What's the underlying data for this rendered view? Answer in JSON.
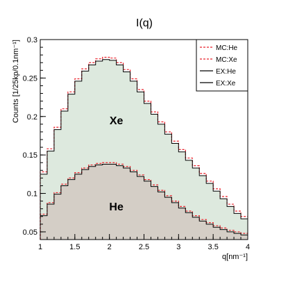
{
  "chart_data": {
    "type": "line",
    "title": "I(q)",
    "xlabel": "q[nm⁻¹]",
    "ylabel": "Counts [1/25kp/0.1nm⁻¹]",
    "xlim": [
      1,
      4
    ],
    "ylim": [
      0.04,
      0.3
    ],
    "x_tick_labels": [
      "1",
      "1.5",
      "2",
      "2.5",
      "3",
      "3.5",
      "4"
    ],
    "y_tick_labels": [
      "0.05",
      "0.1",
      "0.15",
      "0.2",
      "0.25",
      "0.3"
    ],
    "x_ticks": [
      1,
      1.5,
      2,
      2.5,
      3,
      3.5,
      4
    ],
    "y_ticks": [
      0.05,
      0.1,
      0.15,
      0.2,
      0.25,
      0.3
    ],
    "histogram_style": "step",
    "bin_edges": [
      1,
      1.1,
      1.2,
      1.3,
      1.4,
      1.5,
      1.6,
      1.7,
      1.8,
      1.9,
      2.0,
      2.1,
      2.2,
      2.3,
      2.4,
      2.5,
      2.6,
      2.7,
      2.8,
      2.9,
      3.0,
      3.1,
      3.2,
      3.3,
      3.4,
      3.5,
      3.6,
      3.7,
      3.8,
      3.9,
      4.0
    ],
    "series": [
      {
        "name": "MC:He",
        "color": "#e8212a",
        "dash": "dashed",
        "values": [
          0.073,
          0.088,
          0.101,
          0.112,
          0.12,
          0.127,
          0.133,
          0.137,
          0.139,
          0.14,
          0.14,
          0.138,
          0.135,
          0.13,
          0.124,
          0.118,
          0.111,
          0.104,
          0.097,
          0.09,
          0.083,
          0.077,
          0.071,
          0.066,
          0.062,
          0.058,
          0.055,
          0.052,
          0.05,
          0.048
        ]
      },
      {
        "name": "MC:Xe",
        "color": "#e8212a",
        "dash": "dashed",
        "values": [
          0.128,
          0.158,
          0.186,
          0.21,
          0.232,
          0.249,
          0.262,
          0.27,
          0.275,
          0.277,
          0.276,
          0.27,
          0.261,
          0.249,
          0.235,
          0.22,
          0.206,
          0.193,
          0.18,
          0.168,
          0.157,
          0.146,
          0.136,
          0.126,
          0.116,
          0.106,
          0.096,
          0.086,
          0.077,
          0.07
        ]
      },
      {
        "name": "EX:He",
        "color": "#000000",
        "dash": "solid",
        "fill": "#d4cec6",
        "values": [
          0.071,
          0.086,
          0.099,
          0.11,
          0.118,
          0.125,
          0.131,
          0.135,
          0.137,
          0.138,
          0.138,
          0.136,
          0.133,
          0.128,
          0.122,
          0.116,
          0.109,
          0.102,
          0.095,
          0.088,
          0.081,
          0.075,
          0.069,
          0.064,
          0.06,
          0.056,
          0.053,
          0.05,
          0.048,
          0.046
        ]
      },
      {
        "name": "EX:Xe",
        "color": "#000000",
        "dash": "solid",
        "fill": "#dde9de",
        "values": [
          0.125,
          0.155,
          0.183,
          0.207,
          0.229,
          0.246,
          0.259,
          0.267,
          0.272,
          0.274,
          0.273,
          0.267,
          0.258,
          0.246,
          0.232,
          0.217,
          0.203,
          0.19,
          0.177,
          0.165,
          0.154,
          0.143,
          0.133,
          0.123,
          0.113,
          0.103,
          0.093,
          0.083,
          0.074,
          0.067
        ]
      }
    ],
    "annotations": [
      {
        "text": "Xe",
        "x": 2.1,
        "y": 0.19
      },
      {
        "text": "He",
        "x": 2.1,
        "y": 0.078
      }
    ],
    "legend_position": "top-right",
    "grid": false
  }
}
